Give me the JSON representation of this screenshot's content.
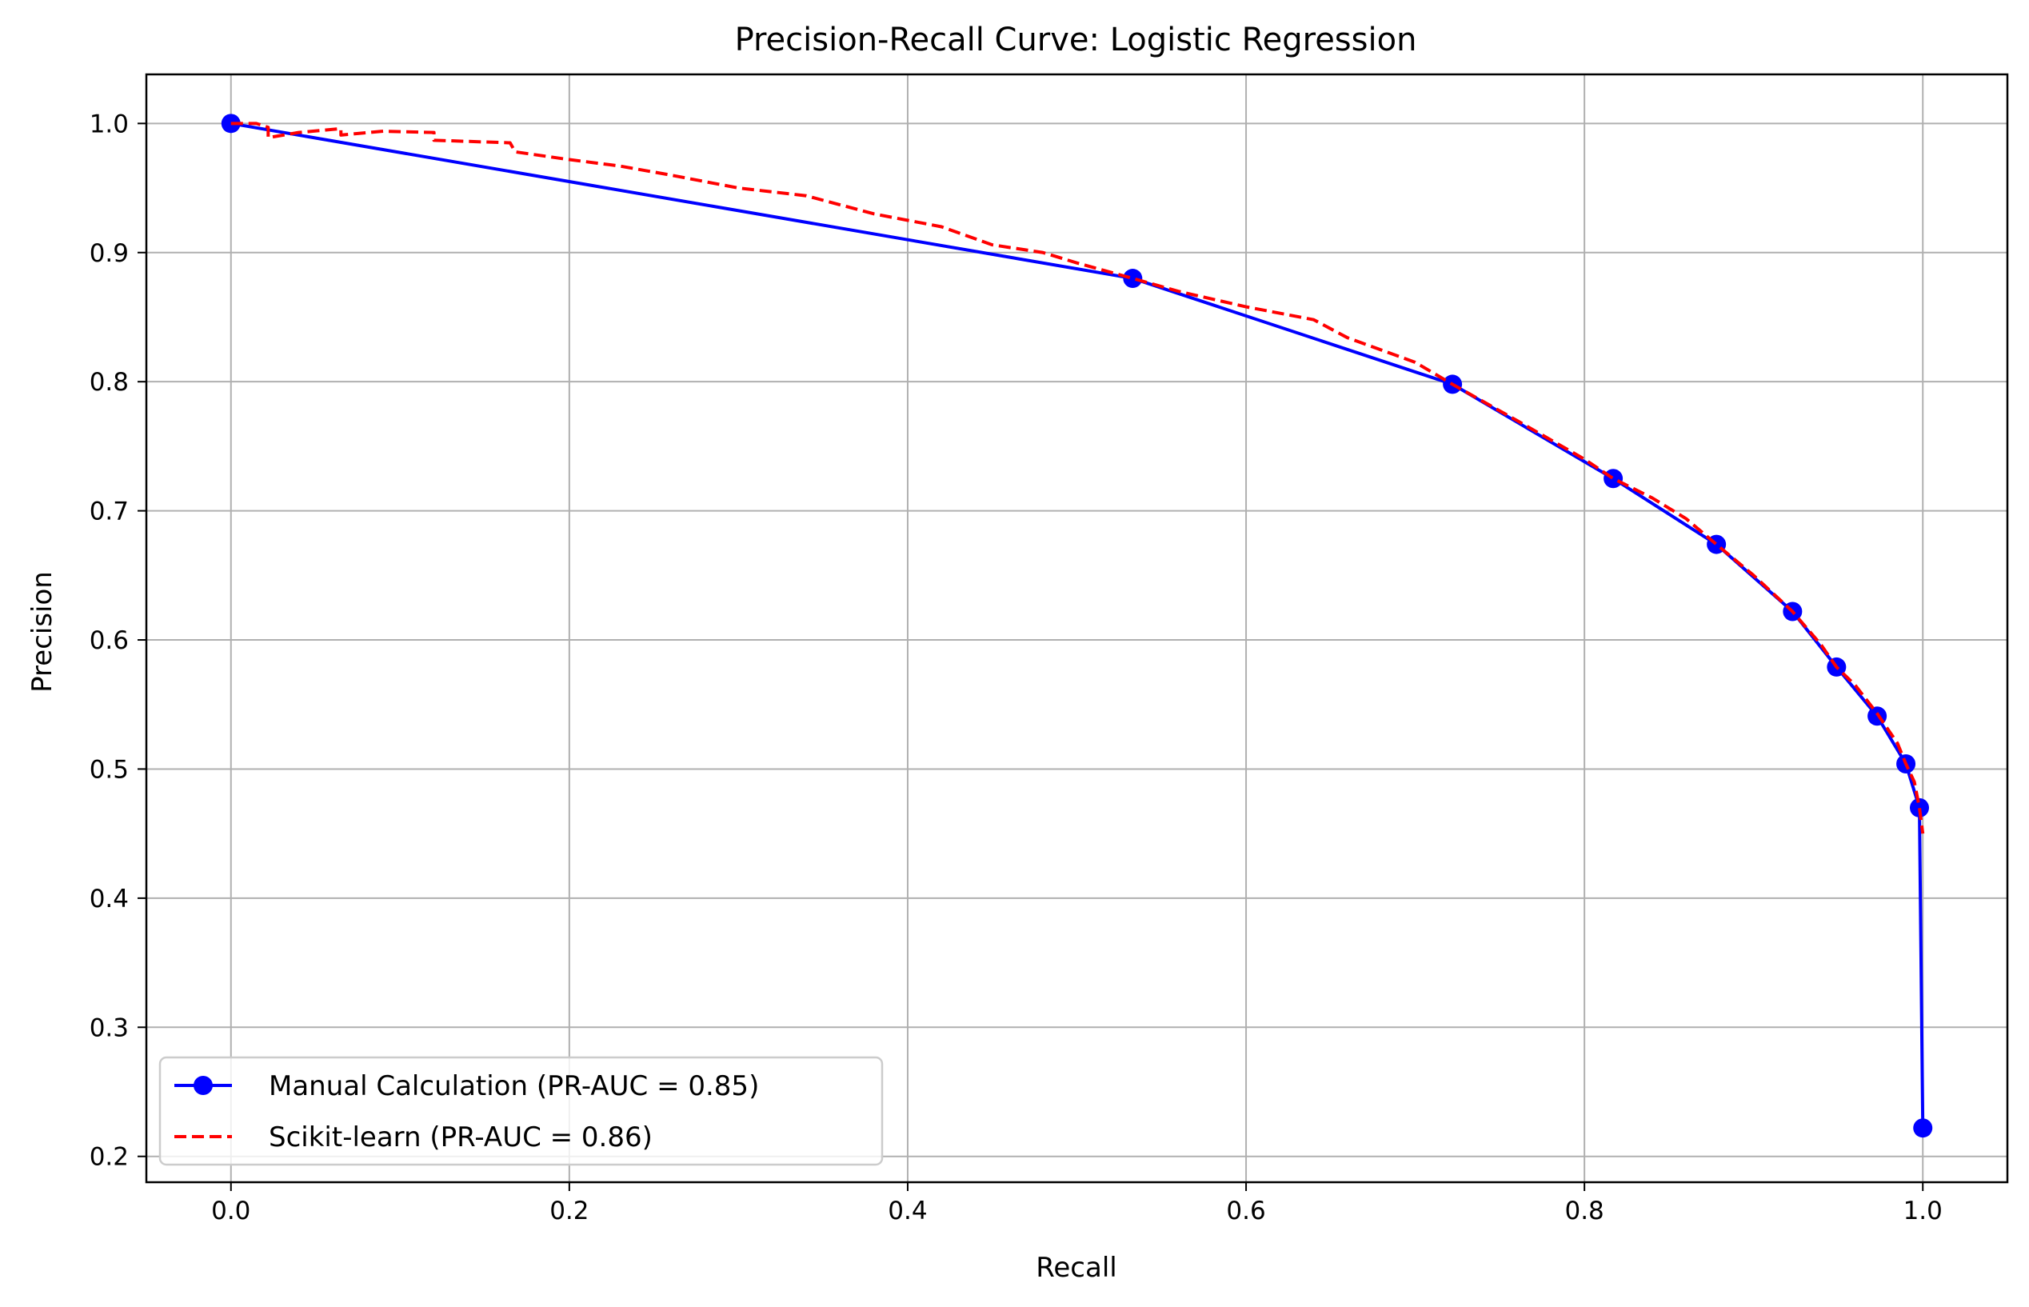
{
  "chart_data": {
    "type": "line",
    "title": "Precision-Recall Curve: Logistic Regression",
    "xlabel": "Recall",
    "ylabel": "Precision",
    "xlim": [
      -0.05,
      1.05
    ],
    "ylim": [
      0.18,
      1.038
    ],
    "xticks": [
      0.0,
      0.2,
      0.4,
      0.6,
      0.8,
      1.0
    ],
    "xtick_labels": [
      "0.0",
      "0.2",
      "0.4",
      "0.6",
      "0.8",
      "1.0"
    ],
    "yticks": [
      0.2,
      0.3,
      0.4,
      0.5,
      0.6,
      0.7,
      0.8,
      0.9,
      1.0
    ],
    "ytick_labels": [
      "0.2",
      "0.3",
      "0.4",
      "0.5",
      "0.6",
      "0.7",
      "0.8",
      "0.9",
      "1.0"
    ],
    "grid": true,
    "legend_position": "lower-left",
    "series": [
      {
        "name": "Manual Calculation (PR-AUC = 0.85)",
        "color": "#0000ff",
        "style": "solid-with-markers",
        "x": [
          0.0,
          0.533,
          0.722,
          0.817,
          0.878,
          0.923,
          0.949,
          0.973,
          0.99,
          0.998,
          1.0
        ],
        "y": [
          1.0,
          0.88,
          0.798,
          0.725,
          0.674,
          0.622,
          0.579,
          0.541,
          0.504,
          0.47,
          0.222
        ]
      },
      {
        "name": "Scikit-learn (PR-AUC = 0.86)",
        "color": "#ff0000",
        "style": "dashed",
        "x": [
          0.0,
          0.015,
          0.022,
          0.022,
          0.04,
          0.065,
          0.065,
          0.09,
          0.12,
          0.12,
          0.165,
          0.168,
          0.2,
          0.23,
          0.26,
          0.3,
          0.34,
          0.36,
          0.38,
          0.42,
          0.45,
          0.48,
          0.5,
          0.533,
          0.56,
          0.6,
          0.64,
          0.66,
          0.7,
          0.722,
          0.76,
          0.8,
          0.817,
          0.84,
          0.86,
          0.878,
          0.9,
          0.923,
          0.94,
          0.949,
          0.96,
          0.973,
          0.985,
          0.99,
          0.995,
          0.998,
          1.0
        ],
        "y": [
          1.0,
          1.0,
          0.997,
          0.989,
          0.993,
          0.996,
          0.991,
          0.994,
          0.993,
          0.987,
          0.985,
          0.978,
          0.972,
          0.967,
          0.96,
          0.95,
          0.944,
          0.937,
          0.93,
          0.92,
          0.906,
          0.9,
          0.892,
          0.88,
          0.87,
          0.858,
          0.848,
          0.834,
          0.815,
          0.798,
          0.77,
          0.74,
          0.725,
          0.71,
          0.694,
          0.674,
          0.65,
          0.622,
          0.596,
          0.579,
          0.565,
          0.543,
          0.52,
          0.504,
          0.49,
          0.47,
          0.45
        ]
      }
    ]
  }
}
